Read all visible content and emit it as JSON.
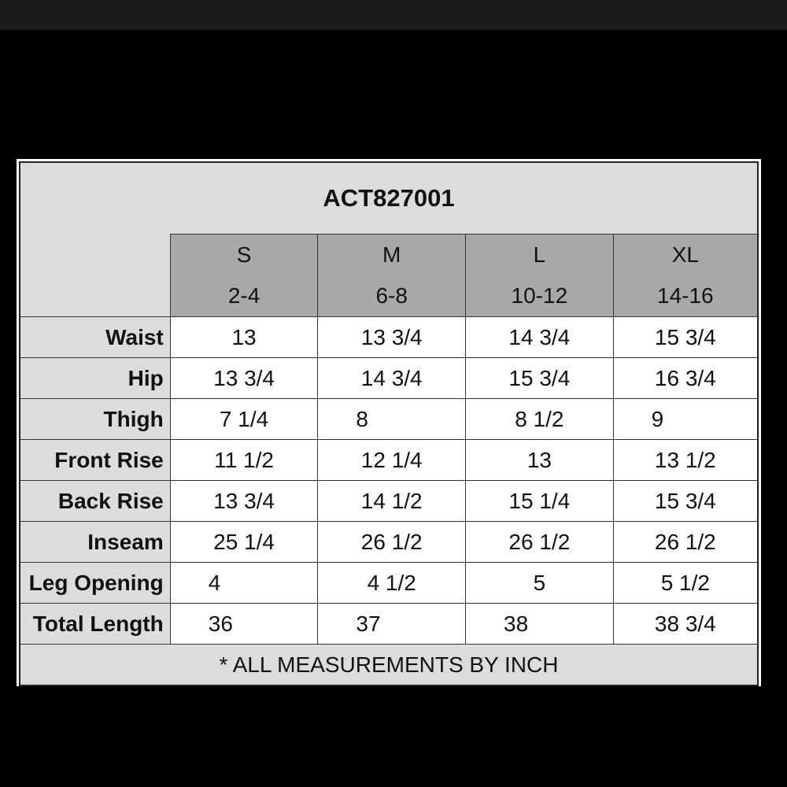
{
  "title": "ACT827001",
  "sizes": [
    {
      "label": "S",
      "range": "2-4"
    },
    {
      "label": "M",
      "range": "6-8"
    },
    {
      "label": "L",
      "range": "10-12"
    },
    {
      "label": "XL",
      "range": "14-16"
    }
  ],
  "rows": [
    {
      "label": "Waist",
      "values": [
        "13",
        "13 3/4",
        "14 3/4",
        "15 3/4"
      ]
    },
    {
      "label": "Hip",
      "values": [
        "13 3/4",
        "14 3/4",
        "15 3/4",
        "16 3/4"
      ]
    },
    {
      "label": "Thigh",
      "values": [
        "7 1/4",
        "8",
        "8 1/2",
        "9"
      ]
    },
    {
      "label": "Front Rise",
      "values": [
        "11 1/2",
        "12 1/4",
        "13",
        "13 1/2"
      ]
    },
    {
      "label": "Back Rise",
      "values": [
        "13 3/4",
        "14 1/2",
        "15 1/4",
        "15 3/4"
      ]
    },
    {
      "label": "Inseam",
      "values": [
        "25 1/4",
        "26 1/2",
        "26 1/2",
        "26 1/2"
      ]
    },
    {
      "label": "Leg Opening",
      "values": [
        "4",
        "4 1/2",
        "5",
        "5 1/2"
      ]
    },
    {
      "label": "Total Length",
      "values": [
        "36",
        "37",
        "38",
        "38 3/4"
      ]
    }
  ],
  "footnote": "* ALL MEASUREMENTS BY INCH"
}
